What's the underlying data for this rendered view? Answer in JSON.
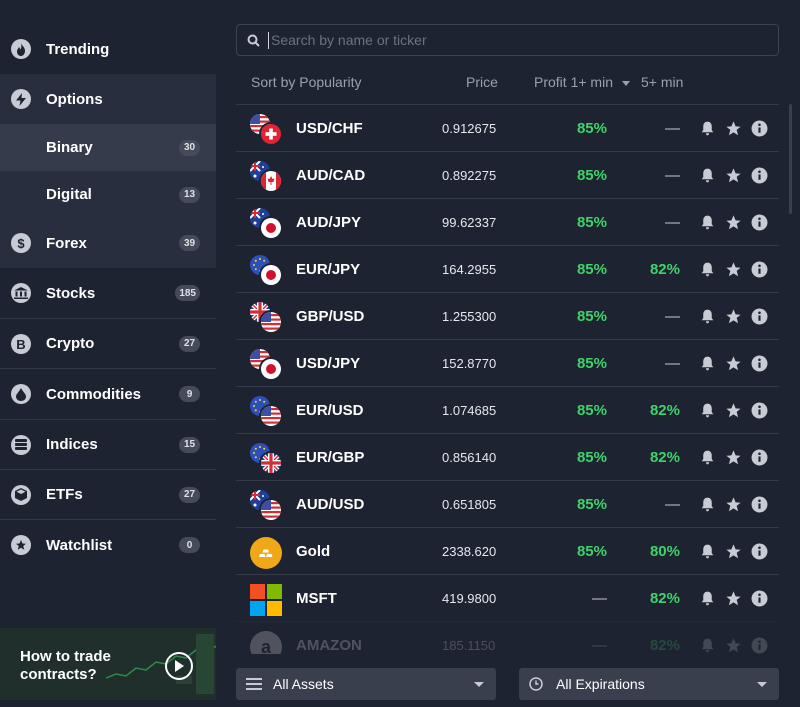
{
  "sidebar": {
    "items": [
      {
        "label": "Trending",
        "icon": "flame-icon",
        "badge": null
      },
      {
        "label": "Options",
        "icon": "lightning-icon",
        "badge": null
      },
      {
        "label": "Binary",
        "icon": null,
        "badge": "30"
      },
      {
        "label": "Digital",
        "icon": null,
        "badge": "13"
      },
      {
        "label": "Forex",
        "icon": "dollar-icon",
        "badge": "39"
      },
      {
        "label": "Stocks",
        "icon": "bank-icon",
        "badge": "185"
      },
      {
        "label": "Crypto",
        "icon": "bitcoin-icon",
        "badge": "27"
      },
      {
        "label": "Commodities",
        "icon": "drop-icon",
        "badge": "9"
      },
      {
        "label": "Indices",
        "icon": "layers-icon",
        "badge": "15"
      },
      {
        "label": "ETFs",
        "icon": "cube-icon",
        "badge": "27"
      },
      {
        "label": "Watchlist",
        "icon": "star-icon",
        "badge": "0"
      }
    ],
    "promo": {
      "text": "How to trade contracts?"
    }
  },
  "search": {
    "placeholder": "Search by name or ticker"
  },
  "table": {
    "headers": {
      "sort": "Sort by Popularity",
      "price": "Price",
      "profit1": "Profit 1+ min",
      "profit5": "5+ min"
    },
    "rows": [
      {
        "asset": "USD/CHF",
        "price": "0.912675",
        "p1": "85%",
        "p5": "—",
        "flags": [
          "us",
          "ch"
        ]
      },
      {
        "asset": "AUD/CAD",
        "price": "0.892275",
        "p1": "85%",
        "p5": "—",
        "flags": [
          "au",
          "ca"
        ]
      },
      {
        "asset": "AUD/JPY",
        "price": "99.62337",
        "p1": "85%",
        "p5": "—",
        "flags": [
          "au",
          "jp"
        ]
      },
      {
        "asset": "EUR/JPY",
        "price": "164.2955",
        "p1": "85%",
        "p5": "82%",
        "flags": [
          "eu",
          "jp"
        ]
      },
      {
        "asset": "GBP/USD",
        "price": "1.255300",
        "p1": "85%",
        "p5": "—",
        "flags": [
          "gb",
          "us"
        ]
      },
      {
        "asset": "USD/JPY",
        "price": "152.8770",
        "p1": "85%",
        "p5": "—",
        "flags": [
          "us",
          "jp"
        ]
      },
      {
        "asset": "EUR/USD",
        "price": "1.074685",
        "p1": "85%",
        "p5": "82%",
        "flags": [
          "eu",
          "us"
        ]
      },
      {
        "asset": "EUR/GBP",
        "price": "0.856140",
        "p1": "85%",
        "p5": "82%",
        "flags": [
          "eu",
          "gb"
        ]
      },
      {
        "asset": "AUD/USD",
        "price": "0.651805",
        "p1": "85%",
        "p5": "—",
        "flags": [
          "au",
          "us"
        ]
      },
      {
        "asset": "Gold",
        "price": "2338.620",
        "p1": "85%",
        "p5": "80%",
        "flags": [
          "gold"
        ]
      },
      {
        "asset": "MSFT",
        "price": "419.9800",
        "p1": "—",
        "p5": "82%",
        "flags": [
          "msft"
        ]
      },
      {
        "asset": "AMAZON",
        "price": "185.1150",
        "p1": "—",
        "p5": "82%",
        "flags": [
          "amzn"
        ]
      }
    ]
  },
  "filters": {
    "assets": "All Assets",
    "expirations": "All Expirations"
  },
  "colors": {
    "accent_green": "#3ed36a",
    "background": "#1e2331",
    "active_item": "#353b4a"
  }
}
